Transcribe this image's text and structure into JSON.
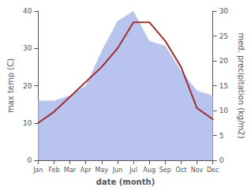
{
  "chart_data": {
    "type": "line",
    "categories": [
      "Jan",
      "Feb",
      "Mar",
      "Apr",
      "May",
      "Jun",
      "Jul",
      "Aug",
      "Sep",
      "Oct",
      "Nov",
      "Dec"
    ],
    "series": [
      {
        "type": "area",
        "color": "#b8c4ee",
        "axis": "y2",
        "values": [
          12,
          12,
          13,
          15,
          22,
          28,
          30,
          24,
          23,
          18,
          14,
          13
        ]
      },
      {
        "type": "line",
        "color": "#a03030",
        "values": [
          10,
          13,
          17,
          21,
          25,
          30,
          37,
          37,
          32,
          25,
          14,
          11
        ]
      }
    ],
    "xlabel": "date (month)",
    "ylabel": "max temp (C)",
    "y2label": "med. precipitation (kg/m2)",
    "ylim": [
      0,
      40
    ],
    "yticks": [
      0,
      10,
      20,
      30,
      40
    ],
    "y2lim": [
      0,
      30
    ],
    "y2ticks": [
      0,
      5,
      10,
      15,
      20,
      25,
      30
    ],
    "grid": false
  }
}
